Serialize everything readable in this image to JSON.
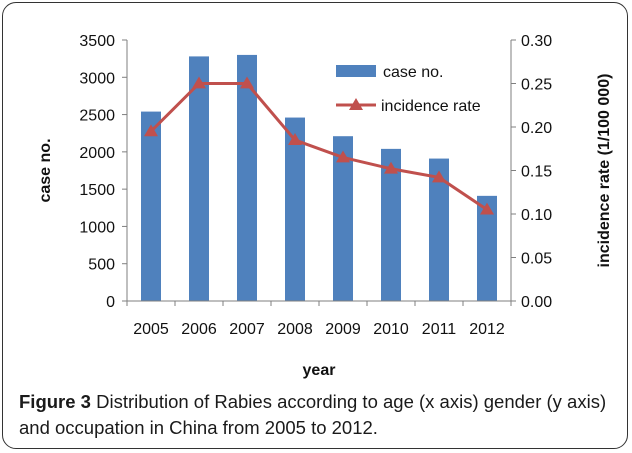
{
  "chart_data": {
    "type": "bar+line",
    "categories": [
      "2005",
      "2006",
      "2007",
      "2008",
      "2009",
      "2010",
      "2011",
      "2012"
    ],
    "series": [
      {
        "name": "case no.",
        "type": "bar",
        "axis": "left",
        "color": "#4f81bd",
        "values": [
          2540,
          3280,
          3300,
          2460,
          2210,
          2040,
          1910,
          1410
        ]
      },
      {
        "name": "incidence rate",
        "type": "line",
        "axis": "right",
        "color": "#c0504d",
        "values": [
          0.195,
          0.25,
          0.25,
          0.185,
          0.165,
          0.152,
          0.142,
          0.105
        ]
      }
    ],
    "xlabel": "year",
    "ylabel": "case no.",
    "y2label": "incidence rate (1/100 000)",
    "ylim": [
      0,
      3500
    ],
    "y2lim": [
      0,
      0.3
    ],
    "yticks": [
      "0",
      "500",
      "1000",
      "1500",
      "2000",
      "2500",
      "3000",
      "3500"
    ],
    "y2ticks": [
      "0.00",
      "0.05",
      "0.10",
      "0.15",
      "0.20",
      "0.25",
      "0.30"
    ],
    "legend_position": "top-right",
    "grid": false
  },
  "caption": {
    "label": "Figure 3",
    "text": "Distribution of Rabies according to age (x axis) gender (y axis) and occupation in China from 2005 to 2012."
  }
}
